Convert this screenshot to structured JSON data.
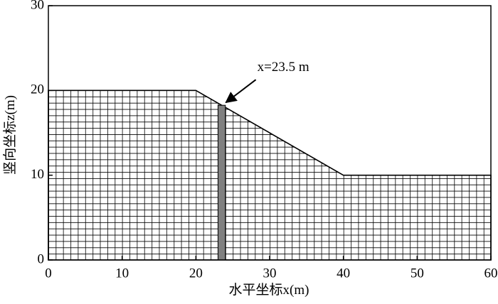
{
  "chart_data": {
    "type": "area",
    "x_label": "水平坐标x(m)",
    "y_label": "竖向坐标z(m)",
    "x": [
      0,
      20,
      40,
      60
    ],
    "values": [
      20,
      20,
      10,
      10
    ],
    "color": "#000000",
    "highlight_x": 23.5,
    "highlight_color": "#808080",
    "annotation": "x=23.5 m",
    "xlim": [
      0,
      60
    ],
    "xticks": [
      0,
      10,
      20,
      30,
      40,
      50,
      60
    ],
    "ylim": [
      0,
      30
    ],
    "yticks": [
      0,
      10,
      20,
      30
    ]
  }
}
